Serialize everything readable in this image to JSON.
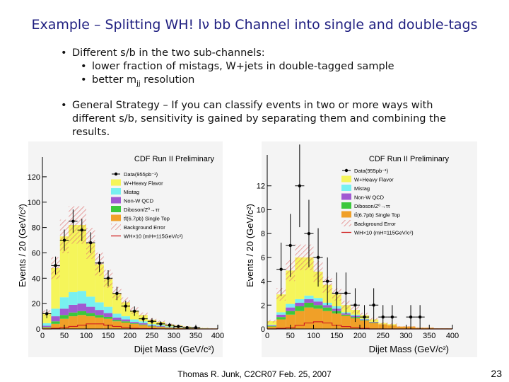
{
  "slide": {
    "title": "Example – Splitting WH! lν bb Channel into single and double-tags",
    "bullet1": "Different s/b in the two sub-channels:",
    "sub1": "lower fraction of mistags, W+jets  in double-tagged sample",
    "sub2": "better m",
    "sub2_sub": "jj",
    "sub2_tail": " resolution",
    "bullet2_line1": "General Strategy – If you can classify events in two or more ways with",
    "bullet2_line2": "different s/b, sensitivity is gained by separating them and combining the",
    "bullet2_line3": "results.",
    "footer": "Thomas R. Junk, C2CR07 Feb. 25, 2007",
    "page_number": "23"
  },
  "colors": {
    "title": "#1f1f80",
    "wjets": "#f5f55a",
    "mistag": "#78f0f0",
    "nonw": "#a05ad2",
    "diboson": "#3cc83c",
    "ttbar": "#f0a028",
    "background_error": "#e07070",
    "whx10": "#d02020"
  },
  "chart_data": [
    {
      "type": "bar",
      "title": "CDF Run II Preliminary",
      "xlabel": "Dijet Mass (GeV/c²)",
      "ylabel": "Events / 20 (GeV/c²)",
      "xlim": [
        0,
        400
      ],
      "ylim": [
        0,
        130
      ],
      "xticks": [
        0,
        50,
        100,
        150,
        200,
        250,
        300,
        350,
        400
      ],
      "yticks": [
        0,
        20,
        40,
        60,
        80,
        100,
        120
      ],
      "x": [
        10,
        30,
        50,
        70,
        90,
        110,
        130,
        150,
        170,
        190,
        210,
        230,
        250,
        270,
        290,
        310,
        330,
        350,
        370,
        390
      ],
      "legend": [
        "Data(955pb⁻¹)",
        "W+Heavy Flavor",
        "Mistag",
        "Non-W QCD",
        "Diboson/Z⁰→ττ",
        "tt̄(6.7pb) Single Top",
        "Background Error",
        "WH×10 (mH=115GeV/c²)"
      ],
      "series": [
        {
          "name": "tt̄ + Single Top",
          "values": [
            1,
            4,
            8,
            10,
            11,
            10,
            9,
            8,
            6,
            5,
            4,
            3,
            2,
            1.5,
            1,
            1,
            0.5,
            0.5,
            0.3,
            0.2
          ]
        },
        {
          "name": "Diboson/Z⁰→ττ",
          "values": [
            0.5,
            2,
            3,
            3,
            3,
            2.5,
            2,
            1.5,
            1,
            1,
            0.5,
            0.5,
            0.3,
            0.3,
            0.2,
            0.1,
            0.1,
            0.1,
            0,
            0
          ]
        },
        {
          "name": "Non-W QCD",
          "values": [
            1,
            4,
            5,
            6,
            6,
            5,
            4,
            3,
            2,
            1.5,
            1,
            1,
            0.5,
            0.5,
            0.3,
            0.2,
            0.1,
            0.1,
            0,
            0
          ]
        },
        {
          "name": "Mistag",
          "values": [
            2,
            6,
            9,
            10,
            10,
            8,
            6,
            5,
            3,
            2.5,
            2,
            1.5,
            1,
            0.8,
            0.5,
            0.4,
            0.3,
            0.2,
            0.1,
            0
          ]
        },
        {
          "name": "W+Heavy Flavor",
          "values": [
            8,
            32,
            48,
            53,
            52,
            42,
            30,
            22,
            16,
            11,
            7,
            5,
            3.5,
            2.5,
            1.5,
            1,
            0.8,
            0.5,
            0.3,
            0.2
          ]
        }
      ],
      "data_points": [
        12,
        50,
        70,
        85,
        78,
        68,
        52,
        40,
        28,
        18,
        14,
        8,
        6,
        4,
        3,
        2,
        1,
        1,
        0,
        0
      ],
      "wh_signal": [
        0,
        0.5,
        1,
        2,
        3,
        4,
        4,
        3,
        2,
        1,
        0.5,
        0.3,
        0.2,
        0.1,
        0,
        0,
        0,
        0,
        0,
        0
      ]
    },
    {
      "type": "bar",
      "title": "CDF Run II Preliminary",
      "xlabel": "Dijet Mass (GeV/c²)",
      "ylabel": "Events / 20 (GeV/c²)",
      "xlim": [
        0,
        400
      ],
      "ylim": [
        0,
        14
      ],
      "xticks": [
        0,
        50,
        100,
        150,
        200,
        250,
        300,
        350,
        400
      ],
      "yticks": [
        0,
        2,
        4,
        6,
        8,
        10,
        12
      ],
      "x": [
        10,
        30,
        50,
        70,
        90,
        110,
        130,
        150,
        170,
        190,
        210,
        230,
        250,
        270,
        290,
        310,
        330,
        350,
        370,
        390
      ],
      "legend": [
        "Data(955pb⁻¹)",
        "W+Heavy Flavor",
        "Mistag",
        "Non-W QCD",
        "Diboson/Z⁰→ττ",
        "tt̄(6.7pb) Single Top",
        "Background Error",
        "WH×10 (mH=115GeV/c²)"
      ],
      "series": [
        {
          "name": "tt̄ + Single Top",
          "values": [
            0.2,
            0.8,
            1.2,
            1.5,
            1.8,
            1.7,
            1.5,
            1.3,
            1.1,
            0.9,
            0.7,
            0.5,
            0.4,
            0.3,
            0.2,
            0.2,
            0.1,
            0.1,
            0.05,
            0.05
          ]
        },
        {
          "name": "Diboson/Z⁰→ττ",
          "values": [
            0.05,
            0.2,
            0.3,
            0.4,
            0.4,
            0.3,
            0.3,
            0.2,
            0.1,
            0.1,
            0.05,
            0.05,
            0,
            0,
            0,
            0,
            0,
            0,
            0,
            0
          ]
        },
        {
          "name": "Non-W QCD",
          "values": [
            0.05,
            0.2,
            0.3,
            0.3,
            0.3,
            0.3,
            0.2,
            0.2,
            0.1,
            0.1,
            0.05,
            0.05,
            0,
            0,
            0,
            0,
            0,
            0,
            0,
            0
          ]
        },
        {
          "name": "Mistag",
          "values": [
            0.05,
            0.2,
            0.3,
            0.3,
            0.3,
            0.3,
            0.2,
            0.2,
            0.1,
            0.1,
            0.05,
            0,
            0,
            0,
            0,
            0,
            0,
            0,
            0,
            0
          ]
        },
        {
          "name": "W+Heavy Flavor",
          "values": [
            0.3,
            1.5,
            2.8,
            3.5,
            3.2,
            2.2,
            1.5,
            1.0,
            0.6,
            0.4,
            0.3,
            0.2,
            0.1,
            0.1,
            0,
            0,
            0,
            0,
            0,
            0
          ]
        }
      ],
      "data_points": [
        0,
        5,
        7,
        12,
        8,
        6,
        4,
        3,
        3,
        2,
        1,
        2,
        1,
        1,
        0,
        1,
        1,
        0,
        0,
        0
      ],
      "wh_signal": [
        0,
        0.05,
        0.1,
        0.3,
        0.5,
        0.6,
        0.5,
        0.3,
        0.2,
        0.1,
        0.05,
        0,
        0,
        0,
        0,
        0,
        0,
        0,
        0,
        0
      ]
    }
  ]
}
